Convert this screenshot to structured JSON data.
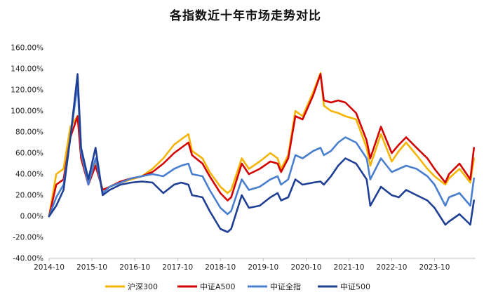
{
  "chart_data": {
    "type": "line",
    "title": "各指数近十年市场走势对比",
    "xlabel": "",
    "ylabel": "",
    "ylim": [
      -40,
      160
    ],
    "yticks": [
      "160.00%",
      "140.00%",
      "120.00%",
      "100.00%",
      "80.00%",
      "60.00%",
      "40.00%",
      "20.00%",
      "0.00%",
      "-20.00%",
      "-40.00%"
    ],
    "xticks": [
      "2014-10",
      "2015-10",
      "2016-10",
      "2017-10",
      "2018-10",
      "2019-10",
      "2020-10",
      "2021-10",
      "2022-10",
      "2023-10"
    ],
    "grid": false,
    "legend": "bottom",
    "series": [
      {
        "name": "沪深300",
        "color": "#F5B400",
        "points": [
          [
            "2014-10",
            0
          ],
          [
            "2014-12",
            40
          ],
          [
            "2015-02",
            45
          ],
          [
            "2015-04",
            85
          ],
          [
            "2015-06",
            95
          ],
          [
            "2015-07",
            60
          ],
          [
            "2015-09",
            35
          ],
          [
            "2015-11",
            50
          ],
          [
            "2016-01",
            25
          ],
          [
            "2016-03",
            28
          ],
          [
            "2016-06",
            32
          ],
          [
            "2016-09",
            35
          ],
          [
            "2016-12",
            38
          ],
          [
            "2017-03",
            45
          ],
          [
            "2017-06",
            55
          ],
          [
            "2017-09",
            68
          ],
          [
            "2017-11",
            73
          ],
          [
            "2018-01",
            78
          ],
          [
            "2018-02",
            62
          ],
          [
            "2018-05",
            55
          ],
          [
            "2018-07",
            42
          ],
          [
            "2018-10",
            28
          ],
          [
            "2018-12",
            22
          ],
          [
            "2019-01",
            25
          ],
          [
            "2019-04",
            55
          ],
          [
            "2019-06",
            45
          ],
          [
            "2019-09",
            52
          ],
          [
            "2019-12",
            60
          ],
          [
            "2020-02",
            55
          ],
          [
            "2020-03",
            45
          ],
          [
            "2020-05",
            58
          ],
          [
            "2020-07",
            100
          ],
          [
            "2020-09",
            95
          ],
          [
            "2020-12",
            118
          ],
          [
            "2021-02",
            136
          ],
          [
            "2021-03",
            105
          ],
          [
            "2021-05",
            100
          ],
          [
            "2021-07",
            98
          ],
          [
            "2021-09",
            95
          ],
          [
            "2021-12",
            92
          ],
          [
            "2022-03",
            65
          ],
          [
            "2022-04",
            48
          ],
          [
            "2022-07",
            78
          ],
          [
            "2022-10",
            52
          ],
          [
            "2022-12",
            62
          ],
          [
            "2023-02",
            70
          ],
          [
            "2023-05",
            58
          ],
          [
            "2023-08",
            45
          ],
          [
            "2023-10",
            38
          ],
          [
            "2024-01",
            30
          ],
          [
            "2024-02",
            36
          ],
          [
            "2024-05",
            45
          ],
          [
            "2024-08",
            32
          ],
          [
            "2024-09",
            55
          ]
        ]
      },
      {
        "name": "中证A500",
        "color": "#D40000",
        "points": [
          [
            "2014-10",
            0
          ],
          [
            "2014-12",
            30
          ],
          [
            "2015-02",
            35
          ],
          [
            "2015-04",
            75
          ],
          [
            "2015-06",
            95
          ],
          [
            "2015-07",
            55
          ],
          [
            "2015-09",
            30
          ],
          [
            "2015-11",
            48
          ],
          [
            "2016-01",
            25
          ],
          [
            "2016-03",
            28
          ],
          [
            "2016-06",
            33
          ],
          [
            "2016-09",
            36
          ],
          [
            "2016-12",
            38
          ],
          [
            "2017-03",
            42
          ],
          [
            "2017-06",
            50
          ],
          [
            "2017-09",
            60
          ],
          [
            "2017-11",
            65
          ],
          [
            "2018-01",
            70
          ],
          [
            "2018-02",
            58
          ],
          [
            "2018-05",
            50
          ],
          [
            "2018-07",
            38
          ],
          [
            "2018-10",
            22
          ],
          [
            "2018-12",
            15
          ],
          [
            "2019-01",
            18
          ],
          [
            "2019-04",
            50
          ],
          [
            "2019-06",
            40
          ],
          [
            "2019-09",
            45
          ],
          [
            "2019-12",
            52
          ],
          [
            "2020-02",
            50
          ],
          [
            "2020-03",
            42
          ],
          [
            "2020-05",
            55
          ],
          [
            "2020-07",
            95
          ],
          [
            "2020-09",
            92
          ],
          [
            "2020-12",
            115
          ],
          [
            "2021-02",
            135
          ],
          [
            "2021-03",
            110
          ],
          [
            "2021-05",
            108
          ],
          [
            "2021-07",
            110
          ],
          [
            "2021-09",
            108
          ],
          [
            "2021-12",
            98
          ],
          [
            "2022-03",
            72
          ],
          [
            "2022-04",
            55
          ],
          [
            "2022-07",
            85
          ],
          [
            "2022-10",
            60
          ],
          [
            "2022-12",
            68
          ],
          [
            "2023-02",
            75
          ],
          [
            "2023-05",
            65
          ],
          [
            "2023-08",
            55
          ],
          [
            "2023-10",
            45
          ],
          [
            "2024-01",
            32
          ],
          [
            "2024-02",
            40
          ],
          [
            "2024-05",
            50
          ],
          [
            "2024-08",
            35
          ],
          [
            "2024-09",
            65
          ]
        ]
      },
      {
        "name": "中证全指",
        "color": "#4A7FD0",
        "points": [
          [
            "2014-10",
            0
          ],
          [
            "2014-12",
            18
          ],
          [
            "2015-02",
            30
          ],
          [
            "2015-04",
            75
          ],
          [
            "2015-06",
            125
          ],
          [
            "2015-07",
            60
          ],
          [
            "2015-09",
            30
          ],
          [
            "2015-11",
            55
          ],
          [
            "2016-01",
            22
          ],
          [
            "2016-03",
            28
          ],
          [
            "2016-06",
            32
          ],
          [
            "2016-09",
            36
          ],
          [
            "2016-12",
            38
          ],
          [
            "2017-03",
            40
          ],
          [
            "2017-06",
            38
          ],
          [
            "2017-09",
            45
          ],
          [
            "2017-11",
            48
          ],
          [
            "2018-01",
            50
          ],
          [
            "2018-02",
            40
          ],
          [
            "2018-05",
            38
          ],
          [
            "2018-07",
            25
          ],
          [
            "2018-10",
            8
          ],
          [
            "2018-12",
            2
          ],
          [
            "2019-01",
            5
          ],
          [
            "2019-04",
            35
          ],
          [
            "2019-06",
            25
          ],
          [
            "2019-09",
            28
          ],
          [
            "2019-12",
            35
          ],
          [
            "2020-02",
            38
          ],
          [
            "2020-03",
            30
          ],
          [
            "2020-05",
            35
          ],
          [
            "2020-07",
            58
          ],
          [
            "2020-09",
            55
          ],
          [
            "2020-12",
            62
          ],
          [
            "2021-02",
            65
          ],
          [
            "2021-03",
            58
          ],
          [
            "2021-05",
            62
          ],
          [
            "2021-07",
            70
          ],
          [
            "2021-09",
            75
          ],
          [
            "2021-12",
            70
          ],
          [
            "2022-03",
            55
          ],
          [
            "2022-04",
            35
          ],
          [
            "2022-07",
            55
          ],
          [
            "2022-10",
            42
          ],
          [
            "2022-12",
            45
          ],
          [
            "2023-02",
            48
          ],
          [
            "2023-05",
            45
          ],
          [
            "2023-08",
            38
          ],
          [
            "2023-10",
            30
          ],
          [
            "2024-01",
            10
          ],
          [
            "2024-02",
            18
          ],
          [
            "2024-05",
            22
          ],
          [
            "2024-08",
            10
          ],
          [
            "2024-09",
            36
          ]
        ]
      },
      {
        "name": "中证500",
        "color": "#1E3F94",
        "points": [
          [
            "2014-10",
            0
          ],
          [
            "2014-12",
            10
          ],
          [
            "2015-02",
            25
          ],
          [
            "2015-04",
            75
          ],
          [
            "2015-06",
            135
          ],
          [
            "2015-07",
            65
          ],
          [
            "2015-09",
            35
          ],
          [
            "2015-11",
            65
          ],
          [
            "2016-01",
            20
          ],
          [
            "2016-03",
            25
          ],
          [
            "2016-06",
            30
          ],
          [
            "2016-09",
            32
          ],
          [
            "2016-12",
            33
          ],
          [
            "2017-03",
            32
          ],
          [
            "2017-06",
            22
          ],
          [
            "2017-09",
            30
          ],
          [
            "2017-11",
            32
          ],
          [
            "2018-01",
            30
          ],
          [
            "2018-02",
            20
          ],
          [
            "2018-05",
            18
          ],
          [
            "2018-07",
            5
          ],
          [
            "2018-10",
            -12
          ],
          [
            "2018-12",
            -15
          ],
          [
            "2019-01",
            -12
          ],
          [
            "2019-04",
            20
          ],
          [
            "2019-06",
            8
          ],
          [
            "2019-09",
            10
          ],
          [
            "2019-12",
            18
          ],
          [
            "2020-02",
            22
          ],
          [
            "2020-03",
            15
          ],
          [
            "2020-05",
            18
          ],
          [
            "2020-07",
            35
          ],
          [
            "2020-09",
            30
          ],
          [
            "2020-12",
            32
          ],
          [
            "2021-02",
            33
          ],
          [
            "2021-03",
            30
          ],
          [
            "2021-05",
            38
          ],
          [
            "2021-07",
            48
          ],
          [
            "2021-09",
            55
          ],
          [
            "2021-12",
            50
          ],
          [
            "2022-03",
            35
          ],
          [
            "2022-04",
            10
          ],
          [
            "2022-07",
            28
          ],
          [
            "2022-10",
            20
          ],
          [
            "2022-12",
            18
          ],
          [
            "2023-02",
            25
          ],
          [
            "2023-05",
            20
          ],
          [
            "2023-08",
            15
          ],
          [
            "2023-10",
            8
          ],
          [
            "2024-01",
            -8
          ],
          [
            "2024-02",
            -5
          ],
          [
            "2024-05",
            2
          ],
          [
            "2024-08",
            -8
          ],
          [
            "2024-09",
            15
          ]
        ]
      }
    ]
  }
}
